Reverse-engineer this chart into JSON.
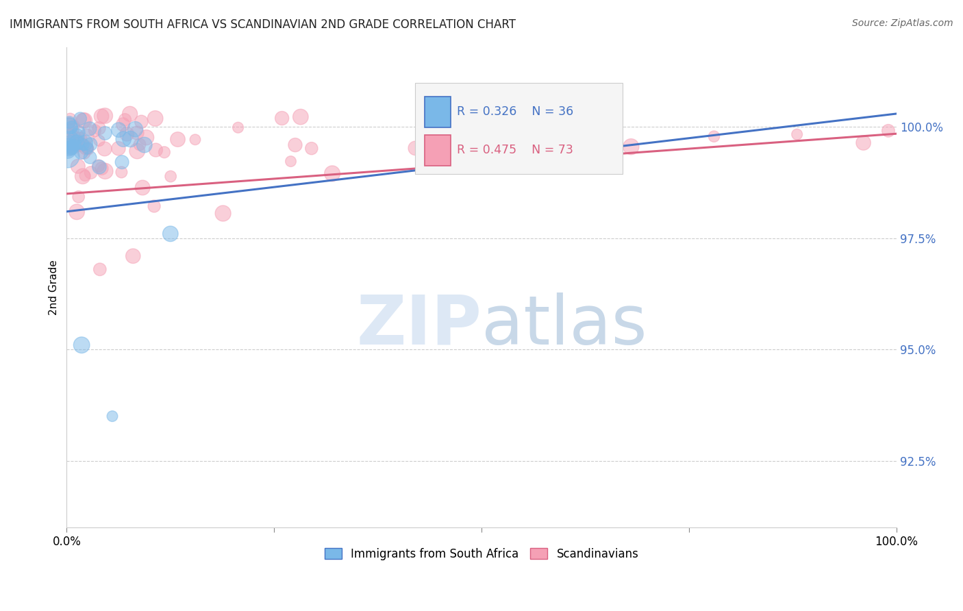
{
  "title": "IMMIGRANTS FROM SOUTH AFRICA VS SCANDINAVIAN 2ND GRADE CORRELATION CHART",
  "source": "Source: ZipAtlas.com",
  "ylabel": "2nd Grade",
  "yticks": [
    "92.5%",
    "95.0%",
    "97.5%",
    "100.0%"
  ],
  "ytick_vals": [
    92.5,
    95.0,
    97.5,
    100.0
  ],
  "xrange": [
    0.0,
    100.0
  ],
  "yrange": [
    91.0,
    101.8
  ],
  "legend1_label": "Immigrants from South Africa",
  "legend2_label": "Scandinavians",
  "r1": "R = 0.326",
  "n1": "N = 36",
  "r2": "R = 0.475",
  "n2": "N = 73",
  "color1": "#7ab8e8",
  "color2": "#f5a0b5",
  "line_color1": "#4472c4",
  "line_color2": "#d96080",
  "background_color": "#ffffff",
  "watermark_color": "#dde8f5"
}
